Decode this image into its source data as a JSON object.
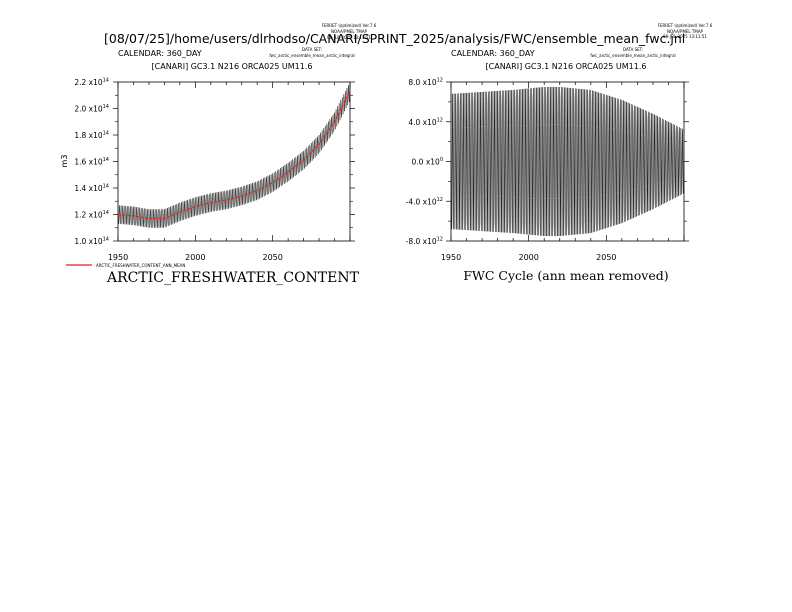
{
  "page_title": "[08/07/25]/home/users/dlrhodso/CANARI/SPRINT_2025/analysis/FWC/ensemble_mean_fwc.jnl",
  "panels": [
    {
      "ferret_line1": "FERRET (optimized) Ver.7.6",
      "ferret_line2": "NOAA/PMEL TMAP",
      "ferret_line3": "08-JUL-2025 13:11:51",
      "calendar": "CALENDAR: 360_DAY",
      "dataset_label": "DATA SET:",
      "dataset_name": "fwc_arctic_ensemble_mean_arctic_integral",
      "run_title": "[CANARI] GC3.1 N216 ORCA025 UM11.6",
      "ylabel": "m3",
      "legend_label": "ARCTIC_FRESHWATER_CONTENT_ANN_MEAN",
      "plot_title": "ARCTIC_FRESHWATER_CONTENT",
      "x_ticks": [
        "1950",
        "2000",
        "2050"
      ],
      "y_ticks": [
        {
          "m": "1.0",
          "e": "14"
        },
        {
          "m": "1.2",
          "e": "14"
        },
        {
          "m": "1.4",
          "e": "14"
        },
        {
          "m": "1.6",
          "e": "14"
        },
        {
          "m": "1.8",
          "e": "14"
        },
        {
          "m": "2.0",
          "e": "14"
        },
        {
          "m": "2.2",
          "e": "14"
        }
      ]
    },
    {
      "ferret_line1": "FERRET (optimized) Ver.7.6",
      "ferret_line2": "NOAA/PMEL TMAP",
      "ferret_line3": "08-JUL-2025 13:11:51",
      "calendar": "CALENDAR: 360_DAY",
      "dataset_label": "DATA SET:",
      "dataset_name": "fwc_arctic_ensemble_mean_arctic_integral",
      "run_title": "[CANARI] GC3.1 N216 ORCA025 UM11.6",
      "plot_title": "FWC Cycle (ann mean removed)",
      "x_ticks": [
        "1950",
        "2000",
        "2050"
      ],
      "y_ticks": [
        {
          "m": "-8.0",
          "e": "12"
        },
        {
          "m": "-4.0",
          "e": "12"
        },
        {
          "m": "0.0",
          "e": "0"
        },
        {
          "m": "4.0",
          "e": "12"
        },
        {
          "m": "8.0",
          "e": "12"
        }
      ]
    }
  ],
  "chart_data": [
    {
      "type": "line",
      "title": "ARCTIC_FRESHWATER_CONTENT",
      "xlabel": "",
      "ylabel": "m3",
      "xlim": [
        1950,
        2100
      ],
      "ylim": [
        100000000000000.0,
        220000000000000.0
      ],
      "grid": false,
      "legend_position": "bottom-left",
      "series": [
        {
          "name": "",
          "kind": "monthly",
          "color": "#000000",
          "x": [
            1950,
            1960,
            1970,
            1980,
            1990,
            2000,
            2010,
            2020,
            2030,
            2040,
            2050,
            2060,
            2070,
            2080,
            2090,
            2100
          ],
          "y": [
            120000000000000.0,
            119000000000000.0,
            117000000000000.0,
            117000000000000.0,
            122000000000000.0,
            126000000000000.0,
            129000000000000.0,
            131000000000000.0,
            134000000000000.0,
            138000000000000.0,
            144000000000000.0,
            152000000000000.0,
            161000000000000.0,
            173000000000000.0,
            190000000000000.0,
            213000000000000.0
          ],
          "seasonal_amplitude": 7000000000000.0
        },
        {
          "name": "ARCTIC_FRESHWATER_CONTENT_ANN_MEAN",
          "kind": "annual_mean",
          "color": "#e02020",
          "x": [
            1950,
            1960,
            1970,
            1980,
            1990,
            2000,
            2010,
            2020,
            2030,
            2040,
            2050,
            2060,
            2070,
            2080,
            2090,
            2100
          ],
          "y": [
            120000000000000.0,
            119000000000000.0,
            117000000000000.0,
            117000000000000.0,
            122000000000000.0,
            126000000000000.0,
            129000000000000.0,
            131000000000000.0,
            134000000000000.0,
            138000000000000.0,
            144000000000000.0,
            152000000000000.0,
            161000000000000.0,
            173000000000000.0,
            190000000000000.0,
            213000000000000.0
          ]
        }
      ]
    },
    {
      "type": "line",
      "title": "FWC Cycle (ann mean removed)",
      "xlabel": "",
      "ylabel": "",
      "xlim": [
        1950,
        2100
      ],
      "ylim": [
        -8000000000000.0,
        8000000000000.0
      ],
      "grid": false,
      "series": [
        {
          "name": "",
          "kind": "seasonal_cycle",
          "color": "#000000",
          "envelope_x": [
            1950,
            1970,
            1990,
            2010,
            2020,
            2040,
            2060,
            2080,
            2100
          ],
          "envelope_amplitude": [
            6800000000000.0,
            7000000000000.0,
            7200000000000.0,
            7500000000000.0,
            7500000000000.0,
            7200000000000.0,
            6200000000000.0,
            4800000000000.0,
            3200000000000.0
          ]
        }
      ]
    }
  ]
}
